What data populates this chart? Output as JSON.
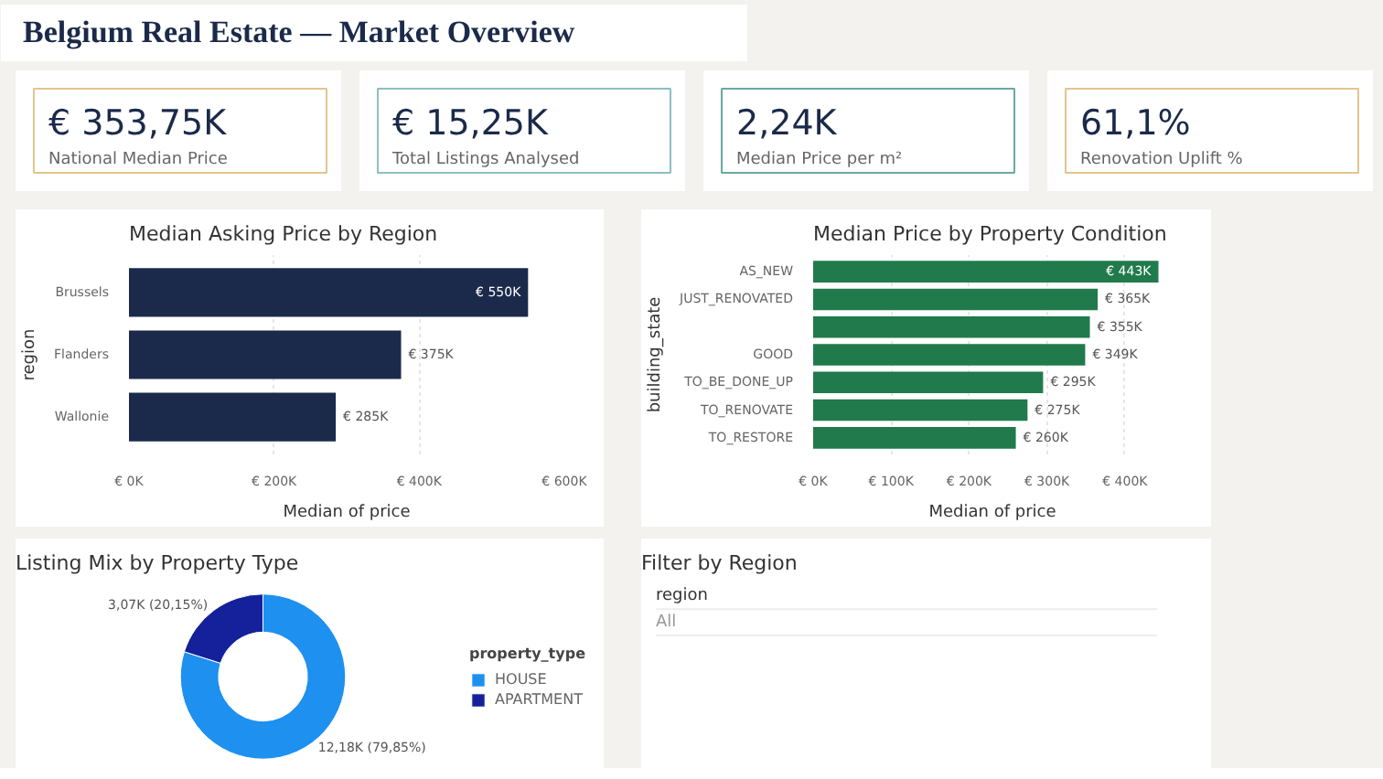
{
  "chart_data": [
    {
      "type": "other",
      "title": "Belgium Real Estate — Market Overview",
      "annotations": [
        "€ 353,75K",
        "National Median Price",
        "€ 15,25K",
        "Total Listings Analysed",
        "2,24K",
        "Median Price per m²",
        "61,1%",
        "Renovation Uplift %"
      ],
      "colors": [
        "#e3c48f",
        "#8fbfc0",
        "#6aa8a3",
        "#e3c48f"
      ]
    },
    {
      "type": "bar",
      "orientation": "horizontal",
      "title": "Median Asking Price by Region",
      "xlabel": "Median of price",
      "ylabel": "region",
      "categories": [
        "Brussels",
        "Flanders",
        "Wallonie"
      ],
      "values": [
        550000,
        375000,
        285000
      ],
      "value_labels": [
        "€ 550K",
        "€ 375K",
        "€ 285K"
      ],
      "color": "#1b2a4a",
      "xlim": [
        0,
        600000
      ],
      "xticks": [
        {
          "value": 0,
          "label": "€ 0K"
        },
        {
          "value": 200000,
          "label": "€ 200K"
        },
        {
          "value": 400000,
          "label": "€ 400K"
        },
        {
          "value": 600000,
          "label": "€ 600K"
        }
      ],
      "grid": "x"
    },
    {
      "type": "bar",
      "orientation": "horizontal",
      "title": "Median Price by Property Condition",
      "xlabel": "Median of price",
      "ylabel": "building_state",
      "categories": [
        "AS_NEW",
        "JUST_RENOVATED",
        null,
        "GOOD",
        "TO_BE_DONE_UP",
        "TO_RENOVATE",
        "TO_RESTORE"
      ],
      "values": [
        443000,
        365000,
        355000,
        349000,
        295000,
        275000,
        260000
      ],
      "value_labels": [
        "€ 443K",
        "€ 365K",
        "€ 355K",
        "€ 349K",
        "€ 295K",
        "€ 275K",
        "€ 260K"
      ],
      "color": "#217a4b",
      "xlim": [
        0,
        460000
      ],
      "xticks": [
        {
          "value": 0,
          "label": "€ 0K"
        },
        {
          "value": 100000,
          "label": "€ 100K"
        },
        {
          "value": 200000,
          "label": "€ 200K"
        },
        {
          "value": 300000,
          "label": "€ 300K"
        },
        {
          "value": 400000,
          "label": "€ 400K"
        }
      ],
      "grid": "x"
    },
    {
      "type": "donut",
      "title": "Listing Mix by Property Type",
      "legend_title": "property_type",
      "categories": [
        "HOUSE",
        "APARTMENT"
      ],
      "values": [
        12180,
        3070
      ],
      "value_labels": [
        "12,18K (79,85%)",
        "3,07K (20,15%)"
      ],
      "colors": [
        "#1e90f0",
        "#14219a"
      ],
      "legend": "right"
    },
    {
      "type": "other",
      "title": "Filter by Region",
      "annotations": [
        "region",
        "All"
      ]
    }
  ]
}
